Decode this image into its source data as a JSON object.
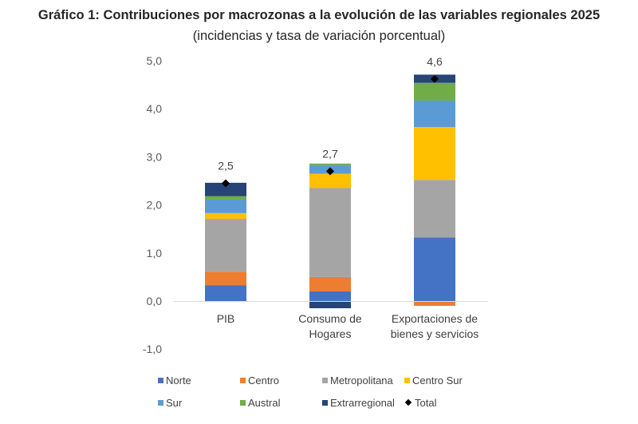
{
  "chart_data": {
    "type": "bar",
    "stacked": true,
    "title": "Gráfico 1: Contribuciones por macrozonas a la evolución de las variables regionales 2025",
    "subtitle": "(incidencias y tasa de variación porcentual)",
    "xlabel": "",
    "ylabel": "",
    "ylim": [
      -1.0,
      5.0
    ],
    "yticks": [
      "5,0",
      "4,0",
      "3,0",
      "2,0",
      "1,0",
      "0,0",
      "-1,0"
    ],
    "ytick_values": [
      5,
      4,
      3,
      2,
      1,
      0,
      -1
    ],
    "grid": false,
    "legend_position": "bottom",
    "categories": [
      [
        "PIB"
      ],
      [
        "Consumo de",
        "Hogares"
      ],
      [
        "Exportaciones de",
        "bienes y servicios"
      ]
    ],
    "series": [
      {
        "name": "Norte",
        "color": "#4472C4",
        "values": [
          0.33,
          0.2,
          1.32
        ]
      },
      {
        "name": "Centro",
        "color": "#ED7D31",
        "values": [
          0.28,
          0.3,
          -0.1
        ]
      },
      {
        "name": "Metropolitana",
        "color": "#A5A5A5",
        "values": [
          1.1,
          1.85,
          1.2
        ]
      },
      {
        "name": "Centro Sur",
        "color": "#FFC000",
        "values": [
          0.12,
          0.3,
          1.1
        ]
      },
      {
        "name": "Sur",
        "color": "#5B9BD5",
        "values": [
          0.28,
          0.18,
          0.55
        ]
      },
      {
        "name": "Austral",
        "color": "#70AD47",
        "values": [
          0.07,
          0.03,
          0.37
        ]
      },
      {
        "name": "Extrarregional",
        "color": "#264478",
        "values": [
          0.28,
          -0.15,
          0.17
        ]
      }
    ],
    "total": {
      "name": "Total",
      "values": [
        2.45,
        2.7,
        4.62
      ],
      "labels": [
        "2,5",
        "2,7",
        "4,6"
      ],
      "marker": "diamond",
      "color": "#000000"
    }
  },
  "legend": {
    "rows": [
      [
        {
          "name": "Norte",
          "color": "#4472C4",
          "kind": "square"
        },
        {
          "name": "Centro",
          "color": "#ED7D31",
          "kind": "square"
        },
        {
          "name": "Metropolitana",
          "color": "#A5A5A5",
          "kind": "square"
        },
        {
          "name": "Centro Sur",
          "color": "#FFC000",
          "kind": "square"
        }
      ],
      [
        {
          "name": "Sur",
          "color": "#5B9BD5",
          "kind": "square"
        },
        {
          "name": "Austral",
          "color": "#70AD47",
          "kind": "square"
        },
        {
          "name": "Extrarregional",
          "color": "#264478",
          "kind": "square"
        },
        {
          "name": "Total",
          "color": "#000000",
          "kind": "diamond"
        }
      ]
    ]
  }
}
